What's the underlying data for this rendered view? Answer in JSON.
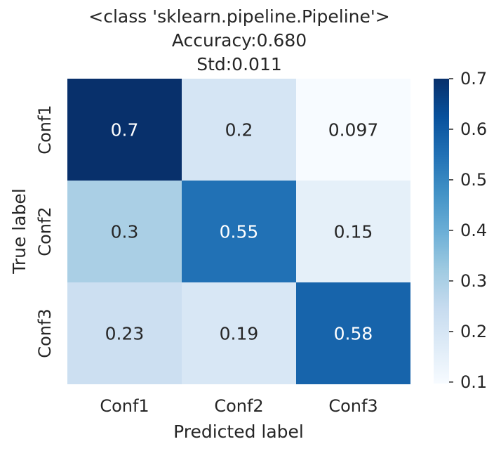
{
  "chart_data": {
    "type": "heatmap",
    "title": "<class 'sklearn.pipeline.Pipeline'>",
    "subtitle_lines": [
      "Accuracy:0.680",
      "Std:0.011"
    ],
    "xlabel": "Predicted label",
    "ylabel": "True label",
    "x_categories": [
      "Conf1",
      "Conf2",
      "Conf3"
    ],
    "y_categories": [
      "Conf1",
      "Conf2",
      "Conf3"
    ],
    "values": [
      [
        0.7,
        0.2,
        0.097
      ],
      [
        0.3,
        0.55,
        0.15
      ],
      [
        0.23,
        0.19,
        0.58
      ]
    ],
    "value_labels": [
      [
        "0.7",
        "0.2",
        "0.097"
      ],
      [
        "0.3",
        "0.55",
        "0.15"
      ],
      [
        "0.23",
        "0.19",
        "0.58"
      ]
    ],
    "colormap": "Blues",
    "colorbar": {
      "range": [
        0.097,
        0.7
      ],
      "ticks": [
        0.7,
        0.6,
        0.5,
        0.4,
        0.3,
        0.2,
        0.1
      ],
      "tick_labels": [
        "0.7",
        "0.6",
        "0.5",
        "0.4",
        "0.3",
        "0.2",
        "0.1"
      ]
    }
  }
}
